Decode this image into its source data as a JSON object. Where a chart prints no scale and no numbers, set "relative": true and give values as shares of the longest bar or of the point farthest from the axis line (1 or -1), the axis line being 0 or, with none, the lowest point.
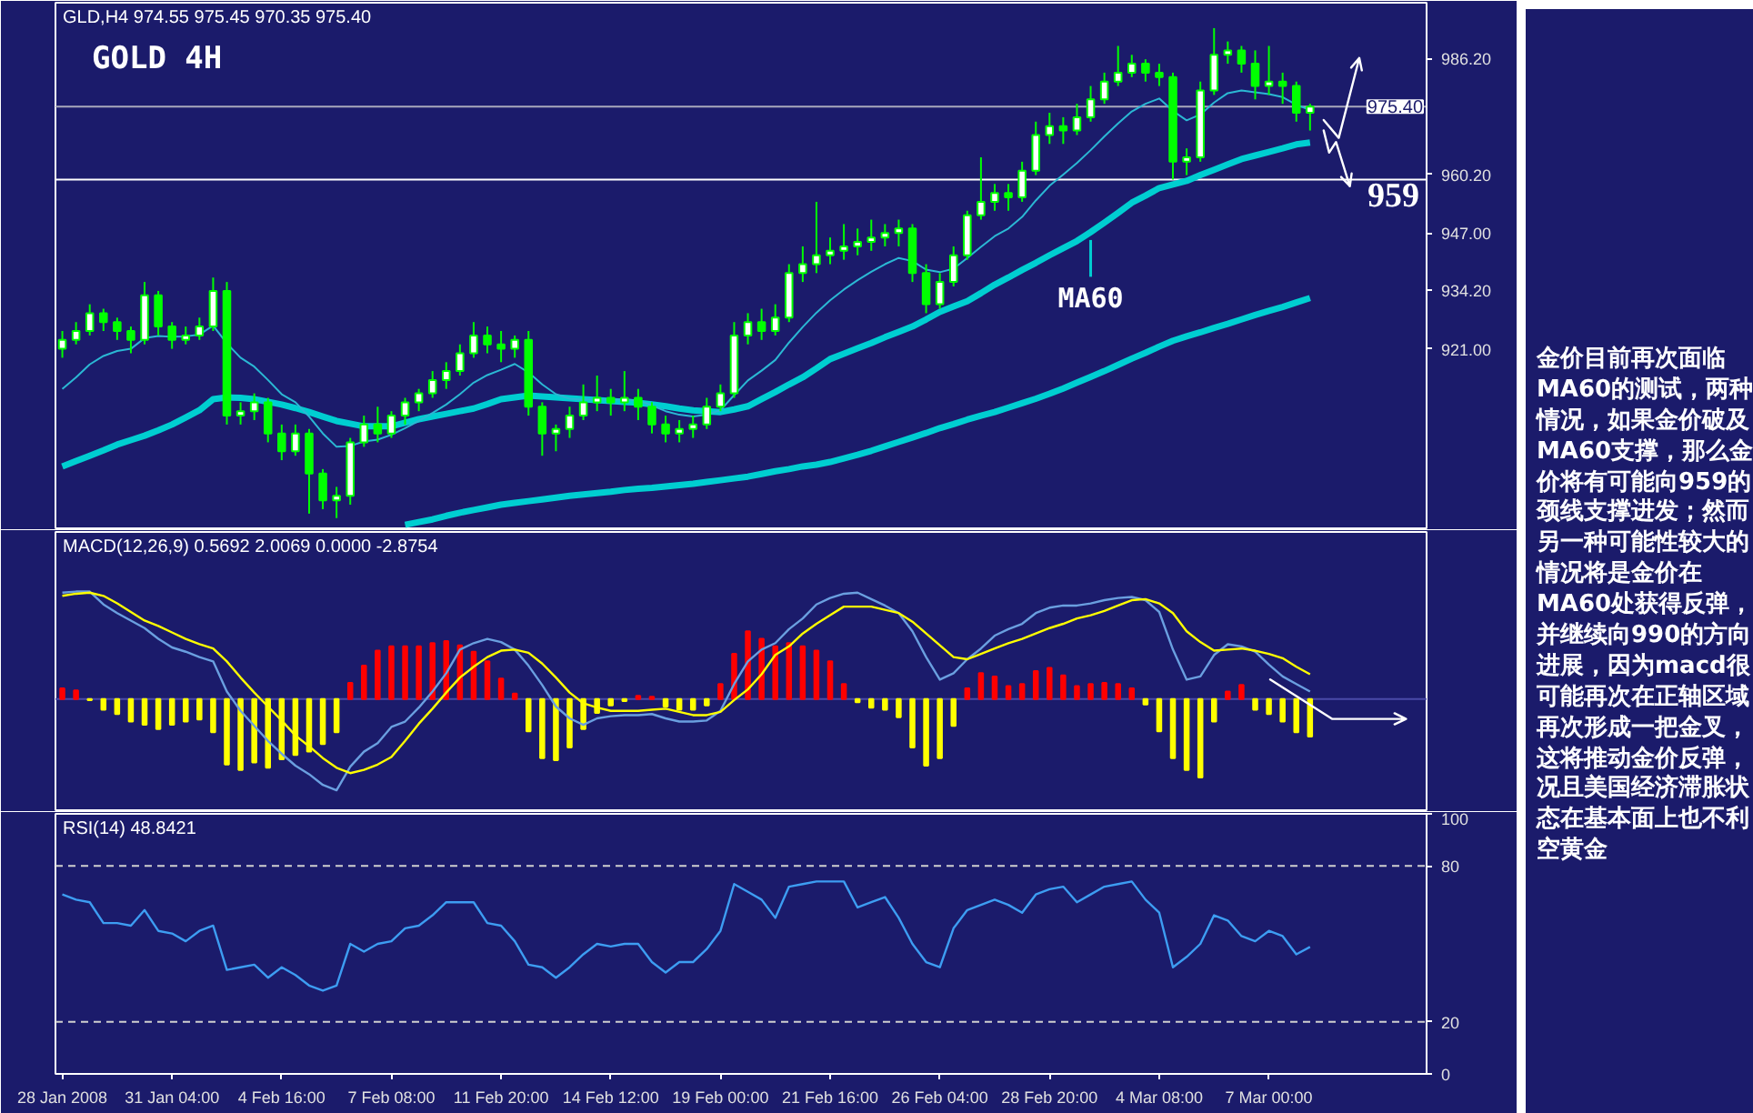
{
  "chart_data": [
    {
      "type": "candlestick",
      "title": "GOLD 4H",
      "subtitle": "GLD,H4 974.55 975.45 970.35 975.40",
      "categories": [
        null,
        null,
        null,
        null,
        null,
        null,
        null,
        null,
        null,
        null,
        null,
        null,
        null,
        null,
        null,
        null,
        null,
        null,
        null,
        null,
        null,
        null,
        null,
        null,
        null,
        null,
        null,
        null,
        null,
        null,
        null,
        null,
        null,
        null,
        null,
        null,
        null,
        null,
        null,
        null,
        null,
        null,
        null,
        null,
        null,
        null,
        null,
        null,
        null,
        null,
        null,
        null,
        null,
        null,
        null,
        null,
        null,
        null,
        null,
        null,
        null,
        null,
        null,
        null,
        null,
        null,
        null,
        null,
        null,
        null,
        null,
        null,
        null,
        null,
        null,
        null,
        null,
        null,
        null,
        null,
        null,
        null,
        null,
        null,
        null,
        null,
        null,
        null,
        null,
        null,
        null,
        null,
        null,
        null,
        null,
        null,
        null,
        null,
        null,
        null
      ],
      "color": "#00ff00",
      "colors": [
        "#ffffff",
        "#ffffff",
        "#ffffff",
        "#00ff00",
        "#00ff00",
        "#00ff00",
        "#ffffff",
        "#00ff00",
        "#00ff00",
        "#ffffff",
        "#ffffff",
        "#ffffff",
        "#00ff00",
        "#ffffff",
        "#ffffff",
        "#00ff00",
        "#00ff00",
        "#ffffff",
        "#00ff00",
        "#00ff00",
        "#ffffff",
        "#ffffff",
        "#ffffff",
        "#00ff00",
        "#ffffff",
        "#ffffff",
        "#ffffff",
        "#ffffff",
        "#ffffff",
        "#ffffff",
        "#ffffff",
        "#00ff00",
        "#00ff00",
        "#ffffff",
        "#00ff00",
        "#00ff00",
        "#ffffff",
        "#ffffff",
        "#ffffff",
        "#ffffff",
        "#00ff00",
        "#ffffff",
        "#00ff00",
        "#00ff00",
        "#00ff00",
        "#ffffff",
        "#ffffff",
        "#ffffff",
        "#ffffff",
        "#ffffff",
        "#ffffff",
        "#00ff00",
        "#ffffff",
        "#ffffff",
        "#ffffff",
        "#ffffff",
        "#ffffff",
        "#ffffff",
        "#ffffff",
        "#ffffff",
        "#ffffff",
        "#ffffff",
        "#00ff00",
        "#00ff00",
        "#ffffff",
        "#ffffff",
        "#ffffff",
        "#ffffff",
        "#ffffff",
        "#00ff00",
        "#ffffff",
        "#ffffff",
        "#ffffff",
        "#00ff00",
        "#ffffff",
        "#ffffff",
        "#ffffff",
        "#ffffff",
        "#ffffff",
        "#00ff00",
        "#00ff00",
        "#00ff00",
        "#ffffff",
        "#ffffff",
        "#ffffff",
        "#ffffff",
        "#00ff00",
        "#00ff00",
        "#ffffff",
        "#00ff00",
        "#00ff00",
        "#ffffff",
        null,
        null,
        null,
        null,
        null,
        null,
        null,
        null
      ],
      "ohlc": [
        [
          921,
          925,
          919,
          923
        ],
        [
          923,
          927,
          922,
          925
        ],
        [
          925,
          931,
          924,
          929
        ],
        [
          929,
          930,
          925,
          927
        ],
        [
          927,
          928,
          923,
          925
        ],
        [
          925,
          926,
          920,
          923
        ],
        [
          923,
          936,
          922,
          933
        ],
        [
          933,
          934,
          924,
          926
        ],
        [
          926,
          927,
          921,
          923
        ],
        [
          923,
          926,
          922,
          924
        ],
        [
          924,
          928,
          923,
          926
        ],
        [
          926,
          937,
          925,
          934
        ],
        [
          934,
          936,
          904,
          906
        ],
        [
          906,
          909,
          904,
          907
        ],
        [
          907,
          911,
          905,
          909
        ],
        [
          909,
          910,
          900,
          902
        ],
        [
          902,
          904,
          896,
          898
        ],
        [
          898,
          904,
          897,
          902
        ],
        [
          902,
          903,
          884,
          893
        ],
        [
          893,
          894,
          885,
          887
        ],
        [
          887,
          890,
          883,
          888
        ],
        [
          888,
          901,
          886,
          900
        ],
        [
          900,
          906,
          899,
          904
        ],
        [
          904,
          908,
          900,
          902
        ],
        [
          902,
          907,
          901,
          906
        ],
        [
          906,
          910,
          904,
          909
        ],
        [
          909,
          912,
          907,
          911
        ],
        [
          911,
          916,
          910,
          914
        ],
        [
          914,
          918,
          912,
          916
        ],
        [
          916,
          922,
          915,
          920
        ],
        [
          920,
          927,
          919,
          924
        ],
        [
          924,
          926,
          920,
          922
        ],
        [
          922,
          925,
          918,
          921
        ],
        [
          921,
          924,
          919,
          923
        ],
        [
          923,
          925,
          906,
          908
        ],
        [
          908,
          909,
          897,
          902
        ],
        [
          902,
          904,
          898,
          903
        ],
        [
          903,
          908,
          901,
          906
        ],
        [
          906,
          913,
          905,
          909
        ],
        [
          909,
          915,
          907,
          910
        ],
        [
          910,
          912,
          906,
          909
        ],
        [
          909,
          916,
          907,
          910
        ],
        [
          910,
          912,
          905,
          908
        ],
        [
          908,
          909,
          902,
          904
        ],
        [
          904,
          906,
          900,
          902
        ],
        [
          902,
          905,
          900,
          903
        ],
        [
          903,
          906,
          901,
          904
        ],
        [
          904,
          910,
          903,
          908
        ],
        [
          908,
          913,
          907,
          911
        ],
        [
          911,
          927,
          910,
          924
        ],
        [
          924,
          929,
          922,
          927
        ],
        [
          927,
          930,
          923,
          925
        ],
        [
          925,
          931,
          924,
          928
        ],
        [
          928,
          940,
          927,
          938
        ],
        [
          938,
          944,
          936,
          940
        ],
        [
          940,
          954,
          938,
          942
        ],
        [
          942,
          946,
          940,
          943
        ],
        [
          943,
          949,
          941,
          944
        ],
        [
          944,
          948,
          942,
          945
        ],
        [
          945,
          950,
          943,
          946
        ],
        [
          946,
          949,
          944,
          947
        ],
        [
          947,
          950,
          944,
          948
        ],
        [
          948,
          949,
          936,
          938
        ],
        [
          938,
          940,
          929,
          931
        ],
        [
          931,
          938,
          930,
          936
        ],
        [
          936,
          944,
          935,
          942
        ],
        [
          942,
          952,
          941,
          951
        ],
        [
          951,
          964,
          950,
          954
        ],
        [
          954,
          958,
          952,
          956
        ],
        [
          956,
          958,
          952,
          955
        ],
        [
          955,
          963,
          954,
          961
        ],
        [
          961,
          972,
          960,
          969
        ],
        [
          969,
          974,
          967,
          971
        ],
        [
          971,
          973,
          967,
          970
        ],
        [
          970,
          976,
          969,
          973
        ],
        [
          973,
          980,
          972,
          977
        ],
        [
          977,
          983,
          976,
          981
        ],
        [
          981,
          989,
          980,
          983
        ],
        [
          983,
          987,
          982,
          985
        ],
        [
          985,
          986,
          981,
          983
        ],
        [
          983,
          985,
          980,
          982
        ],
        [
          982,
          983,
          959,
          963
        ],
        [
          963,
          966,
          960,
          964
        ],
        [
          964,
          981,
          963,
          979
        ],
        [
          979,
          993,
          978,
          987
        ],
        [
          987,
          990,
          985,
          988
        ],
        [
          988,
          989,
          983,
          985
        ],
        [
          985,
          988,
          977,
          980
        ],
        [
          980,
          989,
          978,
          981
        ],
        [
          981,
          983,
          976,
          980
        ],
        [
          980,
          981,
          972,
          974
        ],
        [
          974,
          976,
          970,
          975.4
        ],
        null,
        null,
        null,
        null,
        null,
        null,
        null,
        null
      ],
      "series": [
        {
          "type": "line",
          "name": "MA60",
          "color": "#00ced1",
          "values": [
            894.6,
            895.8,
            897.0,
            898.2,
            899.5,
            900.5,
            901.5,
            902.7,
            904.0,
            905.6,
            907.2,
            909.7,
            910.1,
            910.0,
            909.7,
            909.1,
            908.5,
            907.7,
            906.8,
            905.8,
            904.8,
            904.2,
            903.6,
            903.6,
            903.6,
            904.4,
            905.2,
            905.8,
            906.4,
            907.0,
            907.6,
            908.6,
            909.7,
            910.1,
            910.5,
            910.3,
            910.1,
            909.9,
            909.7,
            909.5,
            909.3,
            909.1,
            908.9,
            908.5,
            908.1,
            907.6,
            907.2,
            907.0,
            906.8,
            907.4,
            908.1,
            909.7,
            911.3,
            913.0,
            914.6,
            916.6,
            918.7,
            919.9,
            921.1,
            922.3,
            923.6,
            924.8,
            926.0,
            927.6,
            929.3,
            930.5,
            931.7,
            933.5,
            935.4,
            937.0,
            938.7,
            940.3,
            942.0,
            943.6,
            945.2,
            947.2,
            949.3,
            951.5,
            953.8,
            955.4,
            957.1,
            957.9,
            958.7,
            960.0,
            961.2,
            962.4,
            963.6,
            964.4,
            965.2,
            966.0,
            966.9,
            967.3,
            null,
            null,
            null,
            null,
            null,
            null,
            null,
            null
          ]
        },
        {
          "type": "line",
          "color": "#00ced1",
          "values": [
            null,
            null,
            null,
            null,
            null,
            null,
            null,
            null,
            null,
            null,
            null,
            null,
            null,
            null,
            null,
            null,
            null,
            null,
            null,
            null,
            null,
            null,
            null,
            null,
            null,
            881.5,
            882.1,
            882.7,
            883.5,
            884.2,
            884.8,
            885.4,
            886.0,
            886.4,
            886.8,
            887.2,
            887.6,
            888.0,
            888.3,
            888.6,
            888.9,
            889.3,
            889.6,
            889.8,
            890.1,
            890.4,
            890.7,
            891.1,
            891.5,
            891.9,
            892.3,
            892.9,
            893.5,
            894.0,
            894.6,
            895.0,
            895.6,
            896.4,
            897.2,
            898.1,
            899.1,
            900.1,
            901.1,
            902.1,
            903.2,
            904.1,
            905.1,
            906.0,
            906.8,
            907.8,
            908.8,
            909.8,
            910.9,
            912.1,
            913.4,
            914.7,
            916.0,
            917.4,
            918.8,
            920.1,
            921.5,
            922.8,
            923.8,
            924.7,
            925.7,
            926.6,
            927.6,
            928.6,
            929.5,
            930.4,
            931.4,
            932.4,
            null,
            null,
            null,
            null,
            null,
            null,
            null,
            null
          ]
        },
        {
          "type": "line",
          "color": "#2bb8d4",
          "values": [
            912.0,
            914.6,
            917.5,
            919.4,
            920.5,
            921.0,
            923.4,
            923.9,
            923.7,
            923.8,
            924.2,
            926.2,
            922.2,
            919.0,
            917.0,
            914.0,
            910.8,
            909.0,
            905.8,
            902.0,
            899.0,
            899.2,
            900.2,
            900.6,
            901.7,
            903.2,
            904.8,
            906.6,
            908.5,
            910.8,
            913.4,
            915.1,
            916.3,
            917.6,
            915.7,
            913.0,
            910.8,
            909.8,
            909.6,
            909.7,
            909.6,
            909.7,
            909.4,
            908.3,
            907.0,
            906.2,
            905.8,
            906.2,
            907.2,
            910.6,
            913.9,
            916.1,
            918.5,
            922.4,
            925.9,
            929.1,
            931.9,
            934.3,
            936.4,
            938.3,
            940.0,
            941.4,
            940.7,
            938.8,
            938.2,
            939.0,
            941.4,
            943.9,
            946.3,
            948.0,
            950.6,
            954.3,
            957.6,
            960.1,
            962.7,
            965.6,
            968.7,
            971.6,
            974.3,
            976.0,
            977.2,
            974.4,
            972.3,
            973.6,
            976.3,
            978.4,
            979.0,
            978.6,
            978.2,
            977.5,
            975.8,
            974.6,
            null,
            null,
            null,
            null,
            null,
            null,
            null,
            null
          ]
        }
      ],
      "ylim": [
        880.7,
        998.7
      ],
      "yticks": [
        {
          "value": 986.2,
          "label": "986.20"
        },
        {
          "value": 960.2,
          "label": "960.20"
        },
        {
          "value": 947,
          "label": "947.00"
        },
        {
          "value": 934.2,
          "label": "934.20"
        },
        {
          "value": 921,
          "label": "921.00"
        }
      ],
      "ref_lines": [
        {
          "axis": "y",
          "value": 975.4,
          "label": "975.40",
          "color": "#a8a8bc"
        },
        {
          "axis": "y",
          "value": 959,
          "label": "959",
          "color": "#ffffff"
        }
      ],
      "annotations": [
        "金价目前再次面临MA60的测试，两种情况，如果金价破及MA60支撑，那么金价将有可能向959的颈线支撑进发；然而另一种可能性较大的情况将是金价在MA60处获得反弹，并继续向990的方向进展，因为macd很可能再次在正轴区域再次形成一把金叉，这将推动金价反弹，况且美国经济滞胀状态在基本面上也不利空黄金"
      ],
      "tick_labels": "y"
    },
    {
      "type": "bar",
      "title": "MACD(12,26,9) 0.5692 2.0069 0.0000 -2.8754",
      "categories": [
        null,
        null,
        null,
        null,
        null,
        null,
        null,
        null,
        null,
        null,
        null,
        null,
        null,
        null,
        null,
        null,
        null,
        null,
        null,
        null,
        null,
        null,
        null,
        null,
        null,
        null,
        null,
        null,
        null,
        null,
        null,
        null,
        null,
        null,
        null,
        null,
        null,
        null,
        null,
        null,
        null,
        null,
        null,
        null,
        null,
        null,
        null,
        null,
        null,
        null,
        null,
        null,
        null,
        null,
        null,
        null,
        null,
        null,
        null,
        null,
        null,
        null,
        null,
        null,
        null,
        null,
        null,
        null,
        null,
        null,
        null,
        null,
        null,
        null,
        null,
        null,
        null,
        null,
        null,
        null,
        null,
        null,
        null,
        null,
        null,
        null,
        null,
        null,
        null,
        null,
        null,
        null,
        null,
        null,
        null,
        null,
        null,
        null,
        null,
        null
      ],
      "relative": true,
      "series": [
        {
          "type": "bar",
          "colors": [
            "#ff0000",
            "#ff0000",
            "#ffff00",
            "#ffff00",
            "#ffff00",
            "#ffff00",
            "#ffff00",
            "#ffff00",
            "#ffff00",
            "#ffff00",
            "#ffff00",
            "#ffff00",
            "#ffff00",
            "#ffff00",
            "#ffff00",
            "#ffff00",
            "#ffff00",
            "#ffff00",
            "#ffff00",
            "#ffff00",
            "#ffff00",
            "#ff0000",
            "#ff0000",
            "#ff0000",
            "#ff0000",
            "#ff0000",
            "#ff0000",
            "#ff0000",
            "#ff0000",
            "#ff0000",
            "#ff0000",
            "#ff0000",
            "#ff0000",
            "#ff0000",
            "#ffff00",
            "#ffff00",
            "#ffff00",
            "#ffff00",
            "#ffff00",
            "#ffff00",
            "#ffff00",
            "#ffff00",
            "#ff0000",
            "#ff0000",
            "#ffff00",
            "#ffff00",
            "#ffff00",
            "#ffff00",
            "#ff0000",
            "#ff0000",
            "#ff0000",
            "#ff0000",
            "#ff0000",
            "#ff0000",
            "#ff0000",
            "#ff0000",
            "#ff0000",
            "#ff0000",
            "#ffff00",
            "#ffff00",
            "#ffff00",
            "#ffff00",
            "#ffff00",
            "#ffff00",
            "#ffff00",
            "#ffff00",
            "#ff0000",
            "#ff0000",
            "#ff0000",
            "#ff0000",
            "#ff0000",
            "#ff0000",
            "#ff0000",
            "#ff0000",
            "#ff0000",
            "#ff0000",
            "#ff0000",
            "#ff0000",
            "#ff0000",
            "#ffff00",
            "#ffff00",
            "#ffff00",
            "#ffff00",
            "#ffff00",
            "#ffff00",
            "#ff0000",
            "#ff0000",
            "#ffff00",
            "#ffff00",
            "#ffff00",
            "#ffff00",
            "#ffff00",
            null,
            null,
            null,
            null,
            null,
            null,
            null,
            null
          ],
          "values": [
            0.1,
            0.08,
            -0.01,
            -0.1,
            -0.14,
            -0.21,
            -0.24,
            -0.28,
            -0.24,
            -0.21,
            -0.19,
            -0.31,
            -0.61,
            -0.66,
            -0.59,
            -0.64,
            -0.56,
            -0.52,
            -0.49,
            -0.42,
            -0.31,
            0.15,
            0.31,
            0.45,
            0.49,
            0.49,
            0.49,
            0.52,
            0.54,
            0.5,
            0.44,
            0.35,
            0.19,
            0.05,
            -0.3,
            -0.55,
            -0.57,
            -0.45,
            -0.28,
            -0.13,
            -0.06,
            -0.02,
            0.03,
            0.02,
            -0.07,
            -0.1,
            -0.1,
            -0.06,
            0.14,
            0.42,
            0.63,
            0.56,
            0.49,
            0.52,
            0.49,
            0.45,
            0.35,
            0.14,
            -0.03,
            -0.08,
            -0.1,
            -0.17,
            -0.45,
            -0.62,
            -0.55,
            -0.25,
            0.1,
            0.24,
            0.21,
            0.12,
            0.14,
            0.26,
            0.29,
            0.22,
            0.12,
            0.14,
            0.15,
            0.14,
            0.1,
            -0.05,
            -0.3,
            -0.55,
            -0.66,
            -0.73,
            -0.21,
            0.07,
            0.13,
            -0.1,
            -0.14,
            -0.21,
            -0.31,
            -0.35,
            null,
            null,
            null,
            null,
            null,
            null,
            null,
            null
          ]
        },
        {
          "type": "line",
          "color": "#6a9fe0",
          "values": [
            0.99,
            1.0,
            1.0,
            0.88,
            0.8,
            0.73,
            0.66,
            0.56,
            0.48,
            0.44,
            0.39,
            0.35,
            0.07,
            -0.11,
            -0.25,
            -0.39,
            -0.51,
            -0.62,
            -0.7,
            -0.8,
            -0.85,
            -0.63,
            -0.49,
            -0.41,
            -0.26,
            -0.21,
            -0.08,
            0.07,
            0.24,
            0.46,
            0.52,
            0.56,
            0.53,
            0.46,
            0.31,
            0.13,
            -0.07,
            -0.18,
            -0.24,
            -0.18,
            -0.16,
            -0.15,
            -0.15,
            -0.14,
            -0.18,
            -0.21,
            -0.21,
            -0.2,
            -0.11,
            0.14,
            0.35,
            0.46,
            0.52,
            0.65,
            0.75,
            0.88,
            0.94,
            0.98,
            0.99,
            0.93,
            0.87,
            0.8,
            0.63,
            0.39,
            0.18,
            0.24,
            0.37,
            0.47,
            0.59,
            0.65,
            0.7,
            0.8,
            0.85,
            0.87,
            0.87,
            0.89,
            0.92,
            0.94,
            0.95,
            0.92,
            0.81,
            0.46,
            0.18,
            0.21,
            0.41,
            0.51,
            0.49,
            0.44,
            0.32,
            0.21,
            0.14,
            0.07,
            null,
            null,
            null,
            null,
            null,
            null,
            null,
            null
          ]
        },
        {
          "type": "line",
          "color": "#ffff00",
          "values": [
            0.96,
            0.98,
            0.99,
            0.96,
            0.89,
            0.81,
            0.73,
            0.68,
            0.62,
            0.56,
            0.51,
            0.47,
            0.35,
            0.2,
            0.06,
            -0.07,
            -0.2,
            -0.34,
            -0.44,
            -0.55,
            -0.64,
            -0.69,
            -0.66,
            -0.61,
            -0.54,
            -0.39,
            -0.23,
            -0.09,
            0.06,
            0.2,
            0.3,
            0.39,
            0.45,
            0.46,
            0.43,
            0.33,
            0.2,
            0.06,
            -0.04,
            -0.08,
            -0.11,
            -0.11,
            -0.11,
            -0.1,
            -0.09,
            -0.12,
            -0.15,
            -0.15,
            -0.12,
            -0.01,
            0.09,
            0.23,
            0.41,
            0.49,
            0.61,
            0.7,
            0.78,
            0.86,
            0.86,
            0.86,
            0.83,
            0.8,
            0.72,
            0.61,
            0.5,
            0.39,
            0.37,
            0.42,
            0.47,
            0.52,
            0.56,
            0.61,
            0.66,
            0.7,
            0.75,
            0.78,
            0.82,
            0.87,
            0.92,
            0.93,
            0.89,
            0.8,
            0.63,
            0.53,
            0.45,
            0.46,
            0.47,
            0.45,
            0.42,
            0.38,
            0.3,
            0.23,
            null,
            null,
            null,
            null,
            null,
            null,
            null,
            null
          ]
        }
      ],
      "ref_lines": [
        {
          "axis": "y",
          "value": 0,
          "color": "#4a4aa8"
        }
      ],
      "tick_labels": false
    },
    {
      "type": "line",
      "title": "RSI(14) 48.8421",
      "categories": [
        "28 Jan 2008",
        null,
        null,
        null,
        null,
        null,
        null,
        null,
        "31 Jan 04:00",
        null,
        null,
        null,
        null,
        null,
        null,
        null,
        "4 Feb 16:00",
        null,
        null,
        null,
        null,
        null,
        null,
        null,
        "7 Feb 08:00",
        null,
        null,
        null,
        null,
        null,
        null,
        null,
        "11 Feb 20:00",
        null,
        null,
        null,
        null,
        null,
        null,
        null,
        "14 Feb 12:00",
        null,
        null,
        null,
        null,
        null,
        null,
        null,
        "19 Feb 00:00",
        null,
        null,
        null,
        null,
        null,
        null,
        null,
        "21 Feb 16:00",
        null,
        null,
        null,
        null,
        null,
        null,
        null,
        "26 Feb 04:00",
        null,
        null,
        null,
        null,
        null,
        null,
        null,
        "28 Feb 20:00",
        null,
        null,
        null,
        null,
        null,
        null,
        null,
        "4 Mar 08:00",
        null,
        null,
        null,
        null,
        null,
        null,
        null,
        "7 Mar 00:00",
        null,
        null,
        null,
        null,
        null,
        null,
        null,
        null,
        null,
        null,
        null
      ],
      "color": "#3d9df2",
      "values": [
        69,
        67,
        66,
        58,
        58,
        57,
        63,
        55,
        54,
        51,
        55,
        57,
        40,
        41,
        42,
        37,
        41,
        38,
        34,
        32,
        34,
        50,
        47,
        50,
        51,
        56,
        57,
        61,
        66,
        66,
        66,
        58,
        57,
        51,
        42,
        41,
        37,
        41,
        46,
        50,
        49,
        50,
        50,
        43,
        39,
        43,
        43,
        48,
        55,
        73,
        70,
        67,
        60,
        72,
        73,
        74,
        74,
        74,
        64,
        66,
        68,
        60,
        50,
        43,
        41,
        56,
        63,
        65,
        67,
        65,
        62,
        69,
        71,
        72,
        66,
        69,
        72,
        73,
        74,
        67,
        62,
        41,
        45,
        50,
        61,
        59,
        53,
        51,
        55,
        53,
        46,
        48.8,
        null,
        null,
        null,
        null,
        null,
        null,
        null,
        null
      ],
      "ylim": [
        0,
        100
      ],
      "yticks": [
        0,
        20,
        80,
        100
      ],
      "ref_lines": [
        {
          "axis": "y",
          "value": 80,
          "color": "#d0d0d0",
          "line_style": "dashed"
        },
        {
          "axis": "y",
          "value": 20,
          "color": "#d0d0d0",
          "line_style": "dashed"
        }
      ]
    }
  ]
}
